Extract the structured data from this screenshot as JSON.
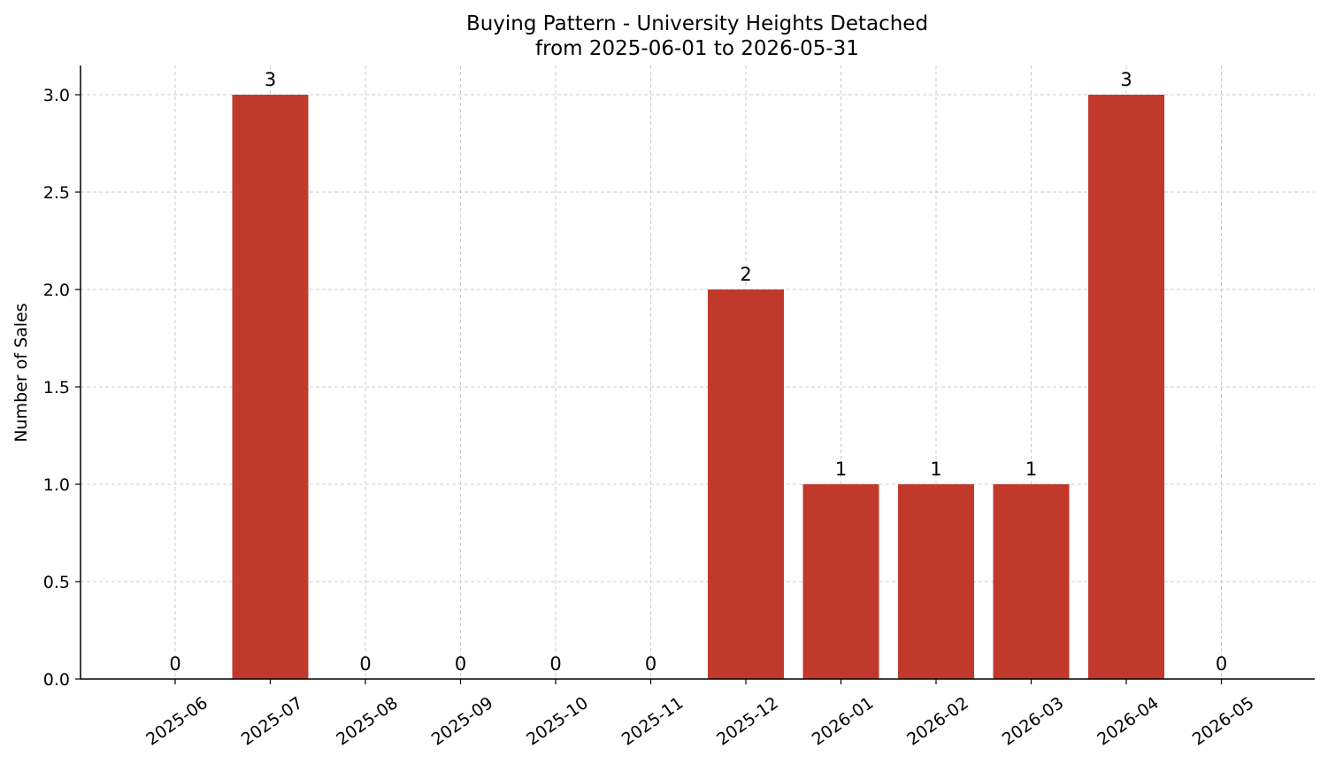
{
  "chart_data": {
    "type": "bar",
    "title": "Buying Pattern - University Heights Detached",
    "subtitle": "from 2025-06-01 to 2026-05-31",
    "xlabel": "",
    "ylabel": "Number of Sales",
    "categories": [
      "2025-06",
      "2025-07",
      "2025-08",
      "2025-09",
      "2025-10",
      "2025-11",
      "2025-12",
      "2026-01",
      "2026-02",
      "2026-03",
      "2026-04",
      "2026-05"
    ],
    "values": [
      0,
      3,
      0,
      0,
      0,
      0,
      2,
      1,
      1,
      1,
      3,
      0
    ],
    "data_labels": [
      "0",
      "3",
      "0",
      "0",
      "0",
      "0",
      "2",
      "1",
      "1",
      "1",
      "3",
      "0"
    ],
    "yticks": [
      "0.0",
      "0.5",
      "1.0",
      "1.5",
      "2.0",
      "2.5",
      "3.0"
    ],
    "ylim": [
      0,
      3.15
    ],
    "grid": true,
    "bar_color": "#c0392b"
  }
}
